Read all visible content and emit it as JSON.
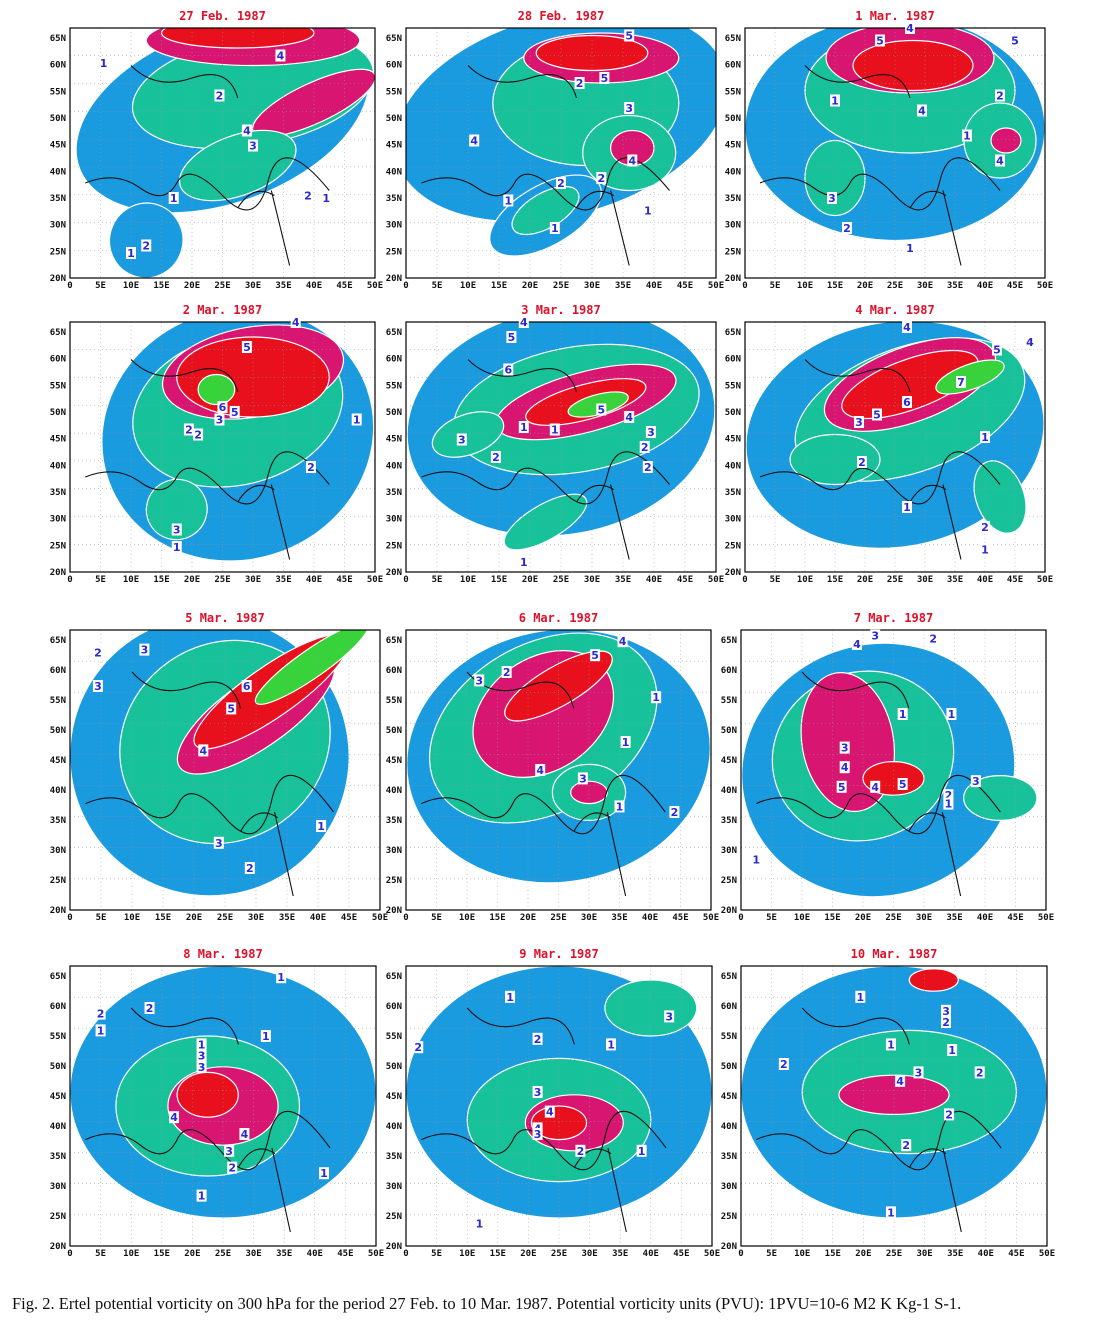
{
  "figure": {
    "panels": [
      {
        "date": "27 Feb. 1987",
        "labels": [
          "1",
          "2",
          "4",
          "4",
          "3",
          "2",
          "1",
          "1",
          "2",
          "1"
        ]
      },
      {
        "date": "28 Feb. 1987",
        "labels": [
          "5",
          "5",
          "3",
          "4",
          "4",
          "2",
          "1",
          "2",
          "1",
          "1",
          "2"
        ]
      },
      {
        "date": "1 Mar. 1987",
        "labels": [
          "5",
          "4",
          "5",
          "1",
          "4",
          "2",
          "1",
          "4",
          "3",
          "2",
          "1"
        ]
      },
      {
        "date": "2 Mar. 1987",
        "labels": [
          "5",
          "4",
          "6",
          "5",
          "3",
          "2",
          "2",
          "1",
          "2",
          "3",
          "1"
        ]
      },
      {
        "date": "3 Mar. 1987",
        "labels": [
          "4",
          "5",
          "6",
          "5",
          "4",
          "3",
          "1",
          "1",
          "3",
          "2",
          "2",
          "2",
          "1"
        ]
      },
      {
        "date": "4 Mar. 1987",
        "labels": [
          "4",
          "5",
          "4",
          "7",
          "6",
          "5",
          "3",
          "1",
          "2",
          "1",
          "2",
          "1"
        ]
      },
      {
        "date": "5 Mar. 1987",
        "labels": [
          "2",
          "3",
          "3",
          "6",
          "5",
          "4",
          "1",
          "3",
          "2"
        ]
      },
      {
        "date": "6 Mar. 1987",
        "labels": [
          "4",
          "5",
          "3",
          "2",
          "1",
          "1",
          "4",
          "3",
          "1",
          "2"
        ]
      },
      {
        "date": "7 Mar. 1987",
        "labels": [
          "4",
          "3",
          "2",
          "1",
          "1",
          "3",
          "4",
          "5",
          "4",
          "5",
          "3",
          "2",
          "1",
          "1"
        ]
      },
      {
        "date": "8 Mar. 1987",
        "labels": [
          "1",
          "2",
          "2",
          "1",
          "1",
          "1",
          "3",
          "3",
          "4",
          "4",
          "3",
          "2",
          "1",
          "1"
        ]
      },
      {
        "date": "9 Mar. 1987",
        "labels": [
          "2",
          "1",
          "3",
          "2",
          "1",
          "3",
          "4",
          "4",
          "3",
          "2",
          "1",
          "1"
        ]
      },
      {
        "date": "10 Mar. 1987",
        "labels": [
          "1",
          "3",
          "2",
          "1",
          "1",
          "2",
          "4",
          "3",
          "2",
          "2",
          "2",
          "1"
        ]
      }
    ],
    "lat_labels": [
      "65N",
      "60N",
      "55N",
      "50N",
      "45N",
      "40N",
      "35N",
      "30N",
      "25N",
      "20N"
    ],
    "lon_labels": [
      "0",
      "5E",
      "10E",
      "15E",
      "20E",
      "25E",
      "30E",
      "35E",
      "40E",
      "45E",
      "50E"
    ],
    "colors": {
      "level1": "#1a9be0",
      "level2": "#17c29a",
      "level3": "#18b85a",
      "level4": "#d81570",
      "level5": "#e8101c",
      "level6": "#38d23a",
      "title": "#e0102a",
      "label": "#2a2ad0"
    }
  },
  "caption": "Fig. 2. Ertel potential vorticity on 300 hPa for the period 27 Feb. to 10 Mar. 1987. Potential vorticity units (PVU): 1PVU=10-6 M2 K Kg-1 S-1."
}
